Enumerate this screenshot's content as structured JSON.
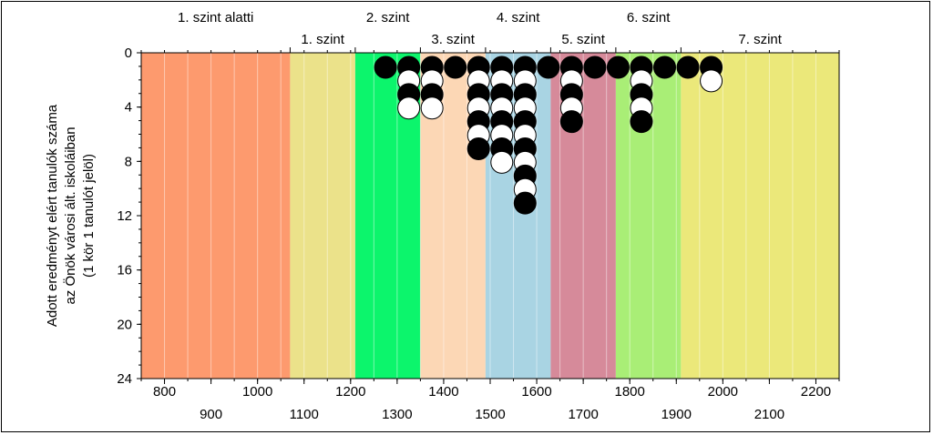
{
  "chart_data": {
    "type": "scatter",
    "ylabel_lines": [
      "Adott eredményt elért tanulók száma",
      "az Önök városi ált. iskoláiban",
      "(1 kör 1 tanulót jelöl)"
    ],
    "xlim": [
      750,
      2250
    ],
    "ylim": [
      0,
      24
    ],
    "y_reversed": true,
    "x_ticks": [
      800,
      900,
      1000,
      1100,
      1200,
      1300,
      1400,
      1500,
      1600,
      1700,
      1800,
      1900,
      2000,
      2100,
      2200
    ],
    "y_ticks": [
      0,
      4,
      8,
      12,
      16,
      20,
      24
    ],
    "minor_x_step": 50,
    "bands": [
      {
        "label": "1. szint alatti",
        "from": 750,
        "to": 1070,
        "color": "#fd9a6e"
      },
      {
        "label": "1. szint",
        "from": 1070,
        "to": 1210,
        "color": "#ebe28a"
      },
      {
        "label": "2. szint",
        "from": 1210,
        "to": 1350,
        "color": "#0cf56c"
      },
      {
        "label": "3. szint",
        "from": 1350,
        "to": 1490,
        "color": "#fcd7b5"
      },
      {
        "label": "4. szint",
        "from": 1490,
        "to": 1630,
        "color": "#a9d4e3"
      },
      {
        "label": "5. szint",
        "from": 1630,
        "to": 1770,
        "color": "#d68a9a"
      },
      {
        "label": "6. szint",
        "from": 1770,
        "to": 1910,
        "color": "#a9ee76"
      },
      {
        "label": "7. szint",
        "from": 1910,
        "to": 2250,
        "color": "#ebe87a"
      }
    ],
    "columns": [
      {
        "x": 1275,
        "count": 1
      },
      {
        "x": 1325,
        "count": 4
      },
      {
        "x": 1375,
        "count": 4
      },
      {
        "x": 1425,
        "count": 1
      },
      {
        "x": 1475,
        "count": 7
      },
      {
        "x": 1525,
        "count": 8
      },
      {
        "x": 1575,
        "count": 11
      },
      {
        "x": 1625,
        "count": 1
      },
      {
        "x": 1675,
        "count": 5
      },
      {
        "x": 1725,
        "count": 1
      },
      {
        "x": 1775,
        "count": 1
      },
      {
        "x": 1825,
        "count": 5
      },
      {
        "x": 1875,
        "count": 1
      },
      {
        "x": 1925,
        "count": 1
      },
      {
        "x": 1975,
        "count": 2
      }
    ]
  }
}
